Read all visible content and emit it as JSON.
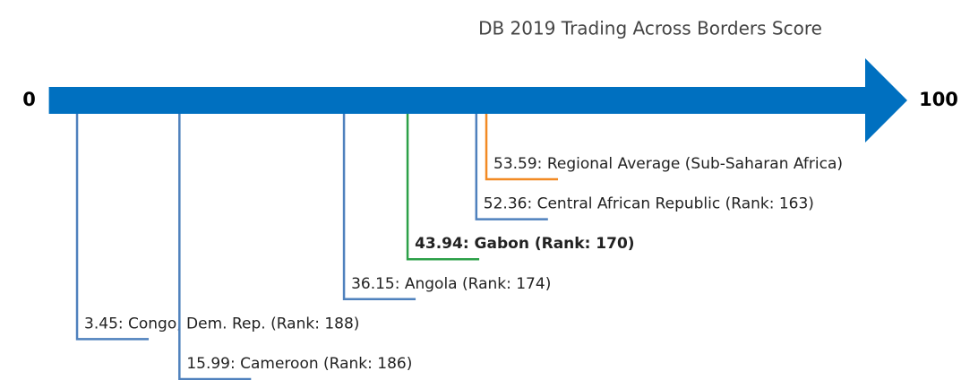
{
  "chart_data": {
    "type": "number_line",
    "title": "DB 2019 Trading Across Borders Score",
    "xlim": [
      0,
      100
    ],
    "xticks": [
      0,
      100
    ],
    "axis_color": "#0070c0",
    "values": [
      53.59,
      52.36,
      43.94,
      36.15,
      3.45,
      15.99
    ],
    "value_labels": [
      "53.59: Regional Average (Sub-Saharan Africa)",
      "52.36: Central African Republic (Rank: 163)",
      "43.94: Gabon (Rank: 170)",
      "36.15: Angola (Rank: 174)",
      "3.45: Congo, Dem. Rep. (Rank: 188)",
      "15.99: Cameroon (Rank: 186)"
    ],
    "colors": [
      "#f28a24",
      "#4f81bd",
      "#2ca048",
      "#4f81bd",
      "#4f81bd",
      "#4f81bd"
    ],
    "bold": [
      false,
      false,
      true,
      false,
      false,
      false
    ]
  }
}
